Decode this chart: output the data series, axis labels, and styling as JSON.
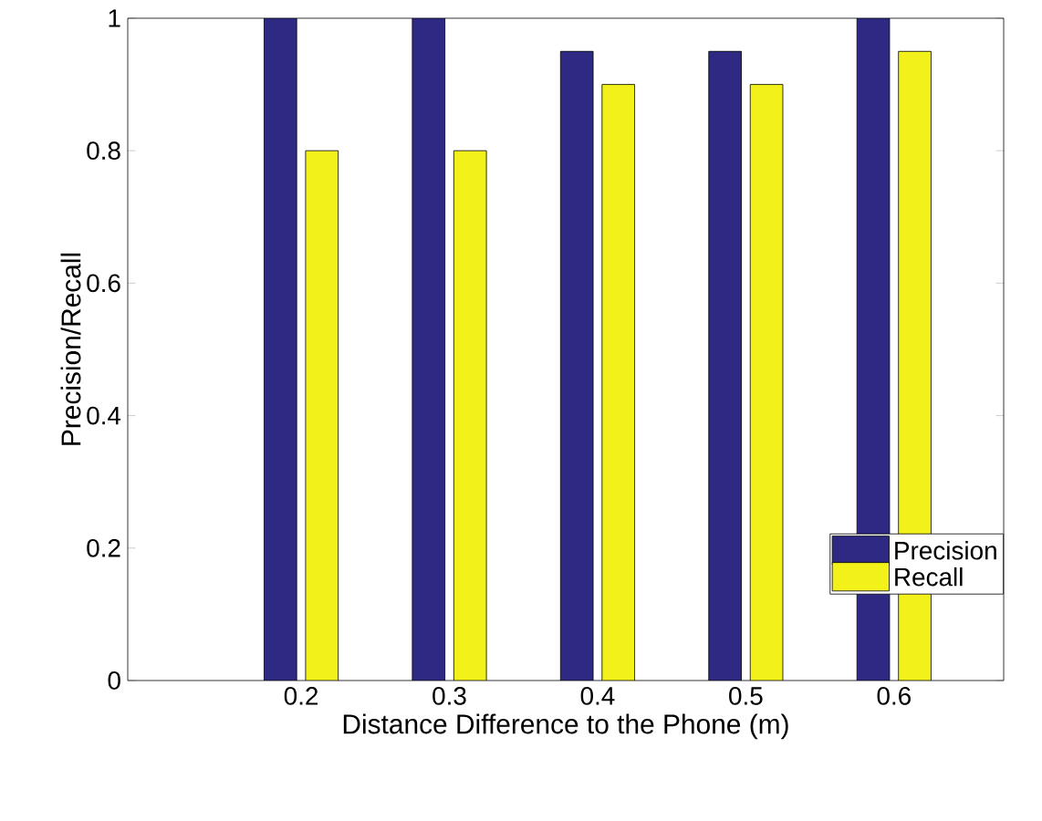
{
  "chart_data": {
    "type": "bar",
    "xlabel": "Distance Difference to the Phone (m)",
    "ylabel": "Precision/Recall",
    "categories": [
      "0.2",
      "0.3",
      "0.4",
      "0.5",
      "0.6"
    ],
    "series": [
      {
        "name": "Precision",
        "color": "#2e2a84",
        "values": [
          1,
          1,
          0.95,
          0.95,
          1
        ]
      },
      {
        "name": "Recall",
        "color": "#f2f21a",
        "values": [
          0.8,
          0.8,
          0.9,
          0.9,
          0.95
        ]
      }
    ],
    "ylim": [
      0,
      1
    ],
    "yticks": [
      0,
      0.2,
      0.4,
      0.6,
      0.8,
      1
    ],
    "legend": "bottom right",
    "grid": false
  }
}
